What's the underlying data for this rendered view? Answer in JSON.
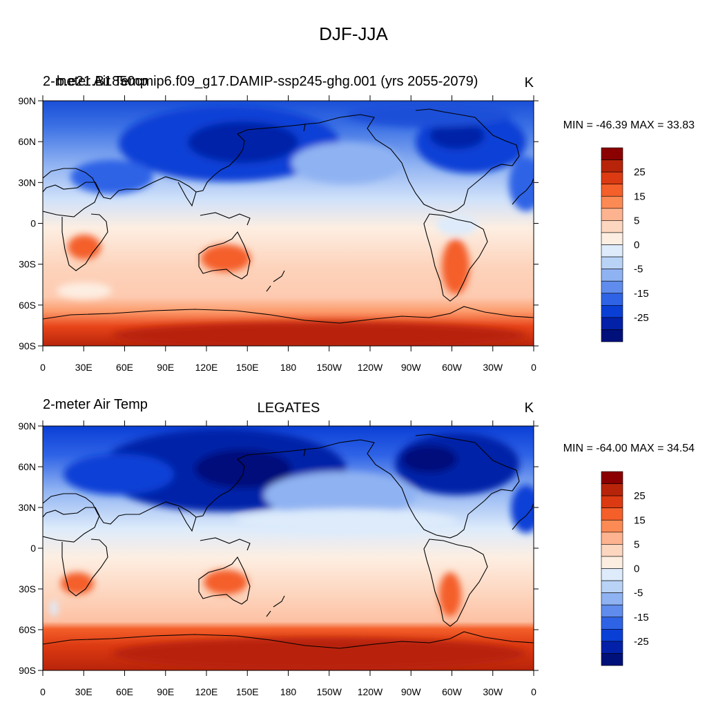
{
  "figure": {
    "title": "DJF-JJA"
  },
  "colorbar": {
    "labels": [
      "25",
      "15",
      "5",
      "0",
      "-5",
      "-15",
      "-25"
    ],
    "colors": [
      "#8b0000",
      "#b8240a",
      "#dc3a12",
      "#f45f2a",
      "#fc8a55",
      "#fdb38f",
      "#fdd6bf",
      "#fdeee2",
      "#ddebfb",
      "#b9d3f7",
      "#8fb2f2",
      "#5f8ced",
      "#2f63e6",
      "#0a3fd6",
      "#0320a8",
      "#00107a"
    ]
  },
  "panels": [
    {
      "id": "model",
      "left_title": "2-meter Air Temp",
      "overlay_title": "b.e21.B1850cmip6.f09_g17.DAMIP-ssp245-ghg.001 (yrs 2055-2079)",
      "center_title": "",
      "units": "K",
      "min_max": "MIN = -46.39 MAX =  33.83"
    },
    {
      "id": "obs",
      "left_title": "2-meter Air Temp",
      "overlay_title": "",
      "center_title": "LEGATES",
      "units": "K",
      "min_max": "MIN = -64.00 MAX =  34.54"
    }
  ],
  "axes": {
    "lat_labels": [
      "90N",
      "60N",
      "30N",
      "0",
      "30S",
      "60S",
      "90S"
    ],
    "lon_labels": [
      "0",
      "30E",
      "60E",
      "90E",
      "120E",
      "150E",
      "180",
      "150W",
      "120W",
      "90W",
      "60W",
      "30W",
      "0"
    ]
  },
  "chart_data": [
    {
      "type": "heatmap",
      "title": "2-meter Air Temp",
      "subtitle": "b.e21.B1850cmip6.f09_g17.DAMIP-ssp245-ghg.001 (yrs 2055-2079)",
      "units": "K",
      "x_range": [
        0,
        360
      ],
      "y_range": [
        -90,
        90
      ],
      "min": -46.39,
      "max": 33.83,
      "contour_levels": [
        -30,
        -25,
        -20,
        -15,
        -10,
        -5,
        -2,
        0,
        2,
        5,
        10,
        15,
        20,
        25,
        30
      ]
    },
    {
      "type": "heatmap",
      "title": "2-meter Air Temp",
      "subtitle": "LEGATES",
      "units": "K",
      "x_range": [
        0,
        360
      ],
      "y_range": [
        -90,
        90
      ],
      "min": -64.0,
      "max": 34.54,
      "contour_levels": [
        -30,
        -25,
        -20,
        -15,
        -10,
        -5,
        -2,
        0,
        2,
        5,
        10,
        15,
        20,
        25,
        30
      ]
    }
  ]
}
